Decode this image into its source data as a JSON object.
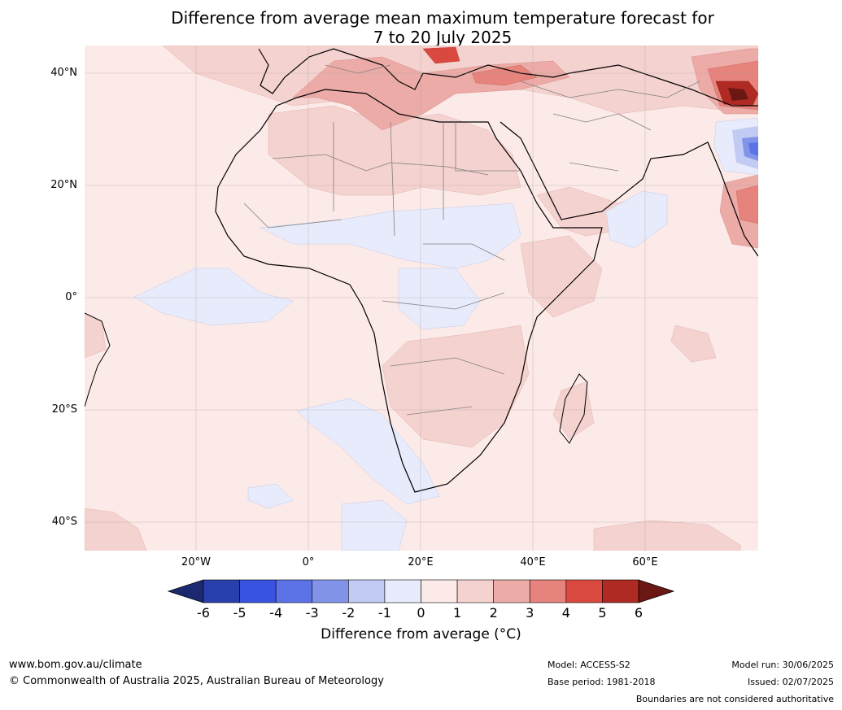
{
  "title": {
    "line1": "Difference from average mean maximum temperature forecast for",
    "line2": "7 to 20 July 2025"
  },
  "map": {
    "lat_labels": [
      "40°N",
      "20°N",
      "0°",
      "20°S",
      "40°S"
    ],
    "lon_labels": [
      "20°W",
      "0°",
      "20°E",
      "40°E",
      "60°E"
    ],
    "background_anomaly_color": "#fbeae8",
    "ocean_warm_color": "#f4d2cf"
  },
  "colorbar": {
    "ticks": [
      "-6",
      "-5",
      "-4",
      "-3",
      "-2",
      "-1",
      "0",
      "1",
      "2",
      "3",
      "4",
      "5",
      "6"
    ],
    "colors": [
      "#1b2a70",
      "#2a3fae",
      "#3753e0",
      "#5c73e8",
      "#8294ea",
      "#c2cbf4",
      "#e7ebfc",
      "#fbeae8",
      "#f4d2cf",
      "#ecaba6",
      "#e6837c",
      "#d9493f",
      "#ae2a22",
      "#6b1713"
    ],
    "label": "Difference from average (°C)"
  },
  "footer": {
    "website": "www.bom.gov.au/climate",
    "copyright": "© Commonwealth of Australia 2025, Australian Bureau of Meteorology",
    "model": "Model: ACCESS-S2",
    "base_period": "Base period: 1981-2018",
    "model_run": "Model run: 30/06/2025",
    "issued": "Issued: 02/07/2025",
    "disclaimer": "Boundaries are not considered authoritative"
  }
}
